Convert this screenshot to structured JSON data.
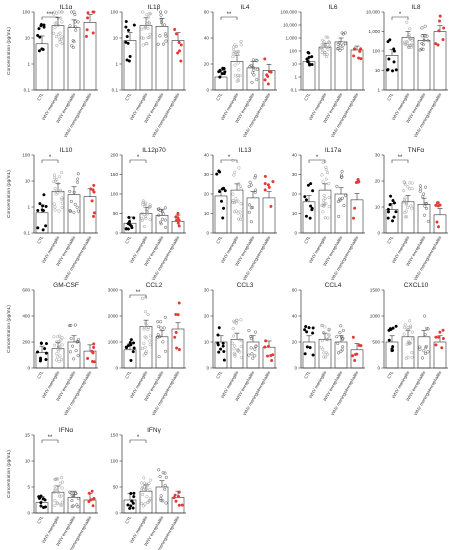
{
  "figure": {
    "group_labels": [
      "CTL",
      "WNV meningitis",
      "WNV encephalitis",
      "WNV meningoencephalitis"
    ],
    "group_colors": [
      "#000000",
      "#9e9e9e",
      "#555555",
      "#e53935"
    ],
    "ylabel": "Concentration (pg/mL)"
  },
  "chart_data": [
    {
      "type": "scatter",
      "title": "IL1α",
      "ylabel": "Concentration (pg/mL)",
      "scale": "log",
      "yticks": [
        "0.1",
        "1",
        "10",
        "100"
      ],
      "ylim": [
        0.1,
        100
      ],
      "categories": [
        "CTL",
        "WNV meningitis",
        "WNV encephalitis",
        "WNV meningoencephalitis"
      ],
      "means": [
        6,
        30,
        25,
        40
      ],
      "significance": [
        {
          "from": 0,
          "to": 1,
          "stars": "***"
        }
      ]
    },
    {
      "type": "scatter",
      "title": "IL1β",
      "ylabel": "",
      "scale": "log",
      "yticks": [
        "0.1",
        "1",
        "10",
        "100"
      ],
      "ylim": [
        0.1,
        100
      ],
      "categories": [
        "CTL",
        "WNV meningitis",
        "WNV encephalitis",
        "WNV meningoencephalitis"
      ],
      "means": [
        8,
        30,
        28,
        8
      ],
      "significance": []
    },
    {
      "type": "scatter",
      "title": "IL4",
      "ylabel": "",
      "scale": "linear",
      "yticks": [
        "0",
        "20",
        "40",
        "60"
      ],
      "ylim": [
        0,
        60
      ],
      "categories": [
        "CTL",
        "WNV meningitis",
        "WNV encephalitis",
        "WNV meningoencephalitis"
      ],
      "means": [
        10,
        22,
        17,
        15
      ],
      "significance": [
        {
          "from": 0,
          "to": 1,
          "stars": "**"
        }
      ]
    },
    {
      "type": "scatter",
      "title": "IL6",
      "ylabel": "",
      "scale": "log",
      "yticks": [
        "0.1",
        "1",
        "10",
        "100",
        "1,000",
        "10,000",
        "100,000"
      ],
      "ylim": [
        0.1,
        100000
      ],
      "categories": [
        "CTL",
        "WNV meningitis",
        "WNV encephalitis",
        "WNV meningoencephalitis"
      ],
      "means": [
        15,
        200,
        500,
        120
      ],
      "significance": []
    },
    {
      "type": "scatter",
      "title": "IL8",
      "ylabel": "",
      "scale": "log",
      "yticks": [
        "1",
        "10",
        "100",
        "1,000",
        "10,000"
      ],
      "ylim": [
        1,
        10000
      ],
      "categories": [
        "CTL",
        "WNV meningitis",
        "WNV encephalitis",
        "WNV meningoencephalitis"
      ],
      "means": [
        60,
        500,
        350,
        1000
      ],
      "significance": [
        {
          "from": 0,
          "to": 1,
          "stars": "*"
        }
      ]
    },
    {
      "type": "scatter",
      "title": "IL10",
      "ylabel": "Concentration (pg/mL)",
      "scale": "log",
      "yticks": [
        "0.1",
        "1",
        "10",
        "100"
      ],
      "ylim": [
        0.1,
        100
      ],
      "categories": [
        "CTL",
        "WNV meningitis",
        "WNV encephalitis",
        "WNV meningoencephalitis"
      ],
      "means": [
        0.6,
        4,
        3,
        2.5
      ],
      "significance": [
        {
          "from": 0,
          "to": 1,
          "stars": "*"
        }
      ]
    },
    {
      "type": "scatter",
      "title": "IL12p70",
      "ylabel": "",
      "scale": "linear",
      "yticks": [
        "0",
        "50",
        "100",
        "150",
        "200"
      ],
      "ylim": [
        0,
        200
      ],
      "categories": [
        "CTL",
        "WNV meningitis",
        "WNV encephalitis",
        "WNV meningoencephalitis"
      ],
      "means": [
        25,
        50,
        45,
        30
      ],
      "significance": [
        {
          "from": 0,
          "to": 1,
          "stars": "*"
        }
      ]
    },
    {
      "type": "scatter",
      "title": "IL13",
      "ylabel": "",
      "scale": "linear",
      "yticks": [
        "0",
        "10",
        "20",
        "30",
        "40"
      ],
      "ylim": [
        0,
        40
      ],
      "categories": [
        "CTL",
        "WNV meningitis",
        "WNV encephalitis",
        "WNV meningoencephalitis"
      ],
      "means": [
        19,
        22,
        18,
        18
      ],
      "significance": [
        {
          "from": 0,
          "to": 1,
          "stars": "*"
        }
      ]
    },
    {
      "type": "scatter",
      "title": "IL17a",
      "ylabel": "",
      "scale": "linear",
      "yticks": [
        "0",
        "10",
        "20",
        "30",
        "40"
      ],
      "ylim": [
        0,
        40
      ],
      "categories": [
        "CTL",
        "WNV meningitis",
        "WNV encephalitis",
        "WNV meningoencephalitis"
      ],
      "means": [
        16,
        22,
        20,
        17
      ],
      "significance": [
        {
          "from": 0,
          "to": 1,
          "stars": "*"
        }
      ]
    },
    {
      "type": "scatter",
      "title": "TNFα",
      "ylabel": "",
      "scale": "linear",
      "yticks": [
        "0",
        "10",
        "20",
        "30"
      ],
      "ylim": [
        0,
        30
      ],
      "categories": [
        "CTL",
        "WNV meningitis",
        "WNV encephalitis",
        "WNV meningoencephalitis"
      ],
      "means": [
        9,
        12,
        11,
        7
      ],
      "significance": [
        {
          "from": 0,
          "to": 1,
          "stars": "**"
        }
      ]
    },
    {
      "type": "scatter",
      "title": "GM-CSF",
      "ylabel": "Concentration (pg/mL)",
      "scale": "linear",
      "yticks": [
        "0",
        "200",
        "400",
        "600"
      ],
      "ylim": [
        0,
        600
      ],
      "categories": [
        "CTL",
        "WNV meningitis",
        "WNV encephalitis",
        "WNV meningoencephalitis"
      ],
      "means": [
        120,
        150,
        200,
        130
      ],
      "significance": []
    },
    {
      "type": "scatter",
      "title": "CCL2",
      "ylabel": "",
      "scale": "linear",
      "yticks": [
        "0",
        "1000",
        "2000",
        "3000"
      ],
      "ylim": [
        0,
        3000
      ],
      "categories": [
        "CTL",
        "WNV meningitis",
        "WNV encephalitis",
        "WNV meningoencephalitis"
      ],
      "means": [
        700,
        1600,
        1200,
        1500
      ],
      "significance": [
        {
          "from": 0,
          "to": 1,
          "stars": "**"
        }
      ]
    },
    {
      "type": "scatter",
      "title": "CCL3",
      "ylabel": "",
      "scale": "linear",
      "yticks": [
        "0",
        "10",
        "20",
        "30"
      ],
      "ylim": [
        0,
        30
      ],
      "categories": [
        "CTL",
        "WNV meningitis",
        "WNV encephalitis",
        "WNV meningoencephalitis"
      ],
      "means": [
        10,
        11,
        10,
        8
      ],
      "significance": []
    },
    {
      "type": "scatter",
      "title": "CCL4",
      "ylabel": "",
      "scale": "linear",
      "yticks": [
        "0",
        "20",
        "40",
        "60"
      ],
      "ylim": [
        0,
        60
      ],
      "categories": [
        "CTL",
        "WNV meningitis",
        "WNV encephalitis",
        "WNV meningoencephalitis"
      ],
      "means": [
        20,
        22,
        20,
        14
      ],
      "significance": []
    },
    {
      "type": "scatter",
      "title": "CXCL10",
      "ylabel": "",
      "scale": "linear",
      "yticks": [
        "0",
        "500",
        "1000",
        "1500"
      ],
      "ylim": [
        0,
        1500
      ],
      "categories": [
        "CTL",
        "WNV meningitis",
        "WNV encephalitis",
        "WNV meningoencephalitis"
      ],
      "means": [
        500,
        600,
        600,
        500
      ],
      "significance": []
    },
    {
      "type": "scatter",
      "title": "IFNα",
      "ylabel": "Concentration (pg/mL)",
      "scale": "linear",
      "yticks": [
        "0",
        "5",
        "10",
        "15"
      ],
      "ylim": [
        0,
        15
      ],
      "categories": [
        "CTL",
        "WNV meningitis",
        "WNV encephalitis",
        "WNV meningoencephalitis"
      ],
      "means": [
        2,
        4,
        3,
        2.5
      ],
      "significance": [
        {
          "from": 0,
          "to": 1,
          "stars": "**"
        }
      ]
    },
    {
      "type": "scatter",
      "title": "IFNγ",
      "ylabel": "",
      "scale": "linear",
      "yticks": [
        "0",
        "50",
        "100",
        "150"
      ],
      "ylim": [
        0,
        150
      ],
      "categories": [
        "CTL",
        "WNV meningitis",
        "WNV encephalitis",
        "WNV meningoencephalitis"
      ],
      "means": [
        25,
        42,
        50,
        30
      ],
      "significance": [
        {
          "from": 0,
          "to": 1,
          "stars": "*"
        }
      ]
    }
  ]
}
